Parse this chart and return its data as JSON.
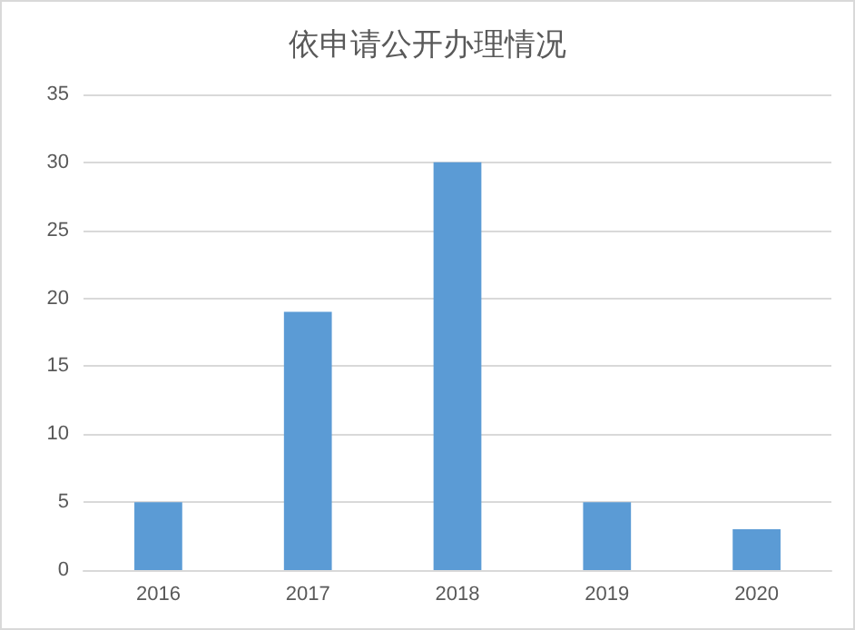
{
  "chart_data": {
    "type": "bar",
    "title": "依申请公开办理情况",
    "categories": [
      "2016",
      "2017",
      "2018",
      "2019",
      "2020"
    ],
    "values": [
      5,
      19,
      30,
      5,
      3
    ],
    "color": "#5b9bd5",
    "ylim": [
      0,
      35
    ],
    "yticks": [
      0,
      5,
      10,
      15,
      20,
      25,
      30,
      35
    ],
    "grid": "y"
  }
}
